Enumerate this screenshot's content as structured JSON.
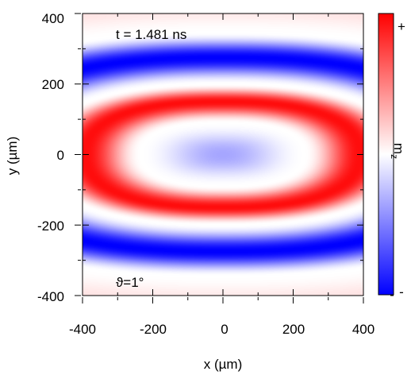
{
  "chart_data": {
    "type": "heatmap",
    "xlabel": "x (µm)",
    "ylabel": "y (µm)",
    "xlim": [
      -400,
      400
    ],
    "ylim": [
      -400,
      400
    ],
    "x_ticks": [
      "-400",
      "-200",
      "0",
      "200",
      "400"
    ],
    "y_ticks": [
      "400",
      "200",
      "0",
      "-200",
      "-400"
    ],
    "annotations": {
      "time": "t = 1.481 ns",
      "angle": "ϑ=1°"
    },
    "colorbar": {
      "label_main": "m",
      "label_sub": "z",
      "max_label": "+",
      "min_label": "-",
      "colors": [
        "#0000ff",
        "#ffffff",
        "#ff0000"
      ]
    },
    "field": {
      "description_of_shape": "elliptical concentric rings centered at origin",
      "center": [
        0,
        0
      ],
      "rings": [
        {
          "radius_um": 0,
          "value": -0.35
        },
        {
          "radius_um": 90,
          "value": 0.0
        },
        {
          "radius_um": 150,
          "value": 0.95
        },
        {
          "radius_um": 200,
          "value": 0.0
        },
        {
          "radius_um": 275,
          "value": -1.0
        },
        {
          "radius_um": 345,
          "value": 0.0
        },
        {
          "radius_um": 430,
          "value": 0.12
        }
      ],
      "x_stretch": 2.6
    }
  }
}
